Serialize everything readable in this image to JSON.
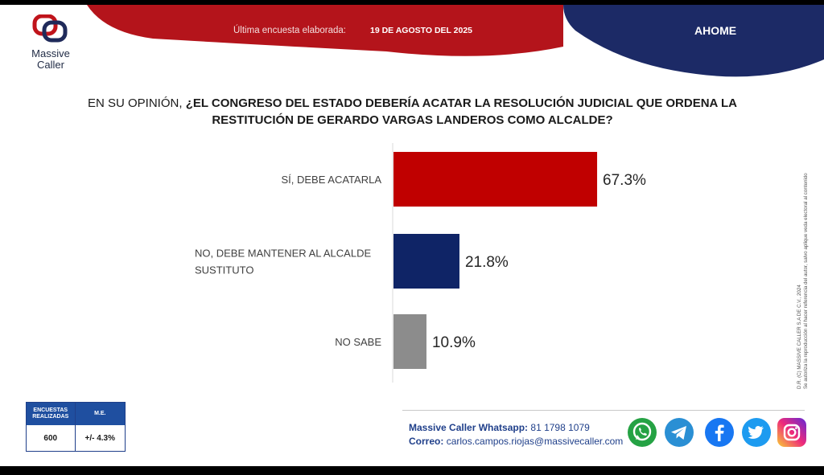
{
  "brand": {
    "name_line1": "Massive",
    "name_line2": "Caller",
    "tagline": ""
  },
  "banner": {
    "label": "Última encuesta elaborada:",
    "date": "19 DE AGOSTO DEL 2025",
    "region": "AHOME",
    "colors": {
      "red": "#b4141b",
      "blue": "#1c2a66"
    }
  },
  "question": {
    "prefix": "EN SU OPINIÓN, ",
    "text": "¿EL CONGRESO DEL ESTADO DEBERÍA ACATAR LA RESOLUCIÓN JUDICIAL QUE ORDENA LA RESTITUCIÓN DE GERARDO VARGAS LANDEROS COMO ALCALDE?"
  },
  "chart_data": {
    "type": "bar",
    "orientation": "horizontal",
    "categories": [
      [
        "SÍ, DEBE ACATARLA"
      ],
      [
        "NO, DEBE MANTENER AL ALCALDE",
        "SUSTITUTO"
      ],
      [
        "NO SABE"
      ]
    ],
    "values": [
      67.3,
      21.8,
      10.9
    ],
    "value_labels": [
      "67.3%",
      "21.8%",
      "10.9%"
    ],
    "colors": [
      "#c00000",
      "#0f2466",
      "#8c8c8c"
    ],
    "xlim": [
      0,
      100
    ],
    "grid": false,
    "legend": "none"
  },
  "side_note": {
    "line1": "D.R. (C) MASSIVE CALLER S.A DE C.V., 2024",
    "line2": "Se autoriza la reproducción al hacer referencia del autor, salvo aplique veda electoral al contenido"
  },
  "survey_table": {
    "head_1": "ENCUESTAS REALIZADAS",
    "head_2": "M.E.",
    "value_1": "600",
    "value_2": "+/- 4.3%"
  },
  "contact": {
    "whatsapp_label": "Massive Caller Whatsapp:",
    "whatsapp_number": "81 1798 1079",
    "email_label": "Correo:",
    "email": "carlos.campos.riojas@massivecaller.com"
  },
  "socials": [
    {
      "icon": "whatsapp-icon",
      "color": "#25a244"
    },
    {
      "icon": "telegram-icon",
      "color": "#2a8fd4"
    },
    {
      "icon": "facebook-icon",
      "color": "#1877f2"
    },
    {
      "icon": "twitter-icon",
      "color": "#1d9bf0"
    },
    {
      "icon": "instagram-icon",
      "color": "#c13584"
    }
  ]
}
